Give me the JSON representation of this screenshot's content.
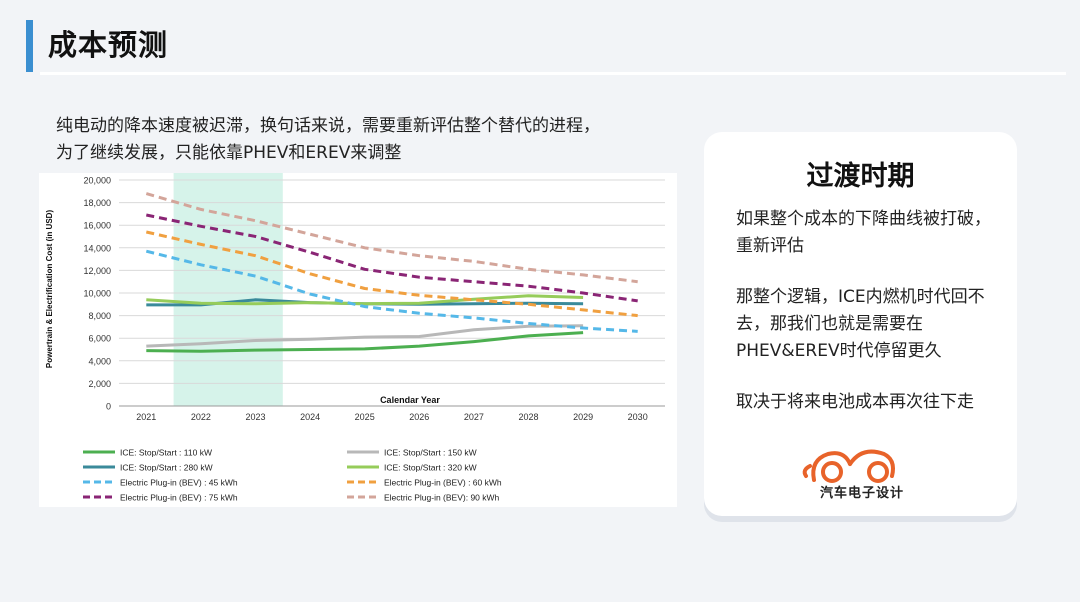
{
  "page": {
    "title": "成本预测",
    "intro": "纯电动的降本速度被迟滞，换句话来说，需要重新评估整个替代的进程，为了继续发展，只能依靠PHEV和EREV来调整"
  },
  "card": {
    "title": "过渡时期",
    "p1": "如果整个成本的下降曲线被打破，重新评估",
    "p2": "那整个逻辑，ICE内燃机时代回不去，那我们也就是需要在PHEV&EREV时代停留更久",
    "p3": "取决于将来电池成本再次往下走",
    "logo_text": "汽车电子设计",
    "logo_color": "#e8632a"
  },
  "chart_data": {
    "type": "line",
    "x": [
      2021,
      2022,
      2023,
      2024,
      2025,
      2026,
      2027,
      2028,
      2029,
      2030
    ],
    "xlabel": "Calendar Year",
    "ylabel": "Powertrain & Electrification Cost (in USD)",
    "ylim": [
      0,
      20000
    ],
    "yticks": [
      0,
      2000,
      4000,
      6000,
      8000,
      10000,
      12000,
      14000,
      16000,
      18000,
      20000
    ],
    "ytick_labels": [
      "0",
      "2,000",
      "4,000",
      "6,000",
      "8,000",
      "10,000",
      "12,000",
      "14,000",
      "16,000",
      "18,000",
      "20,000"
    ],
    "grid": true,
    "highlight_years": [
      2022,
      2023
    ],
    "highlight_color": "#d6f3ea",
    "legend_position": "bottom",
    "series": [
      {
        "name": "ICE: Stop/Start : 110 kW",
        "color": "#4caf50",
        "dash": false,
        "values": [
          4900,
          4850,
          4950,
          5000,
          5050,
          5300,
          5700,
          6200,
          6500,
          null
        ]
      },
      {
        "name": "ICE: Stop/Start : 150 kW",
        "color": "#b8b8b8",
        "dash": false,
        "values": [
          5300,
          5500,
          5800,
          5900,
          6100,
          6150,
          6750,
          7050,
          7100,
          null
        ]
      },
      {
        "name": "ICE: Stop/Start : 280 kW",
        "color": "#3a8a9a",
        "dash": false,
        "values": [
          8950,
          8950,
          9400,
          9150,
          9050,
          9000,
          9050,
          9100,
          9050,
          null
        ]
      },
      {
        "name": "ICE: Stop/Start : 320 kW",
        "color": "#96cc5a",
        "dash": false,
        "values": [
          9400,
          9100,
          9050,
          9150,
          9050,
          9100,
          9450,
          9750,
          9600,
          null
        ]
      },
      {
        "name": "Electric Plug-in (BEV) : 45 kWh",
        "color": "#55b8e8",
        "dash": true,
        "values": [
          13700,
          12500,
          11500,
          9900,
          8800,
          8200,
          7800,
          7300,
          6900,
          6600
        ]
      },
      {
        "name": "Electric Plug-in (BEV) : 60 kWh",
        "color": "#f0a040",
        "dash": true,
        "values": [
          15400,
          14300,
          13300,
          11700,
          10400,
          9800,
          9400,
          9000,
          8500,
          8000
        ]
      },
      {
        "name": "Electric Plug-in (BEV) : 75 kWh",
        "color": "#8a2575",
        "dash": true,
        "values": [
          16900,
          15900,
          15000,
          13600,
          12100,
          11400,
          11000,
          10600,
          10000,
          9300
        ]
      },
      {
        "name": "Electric Plug-in (BEV): 90 kWh",
        "color": "#d3a59a",
        "dash": true,
        "values": [
          18800,
          17400,
          16400,
          15200,
          14000,
          13300,
          12800,
          12100,
          11600,
          11000
        ]
      }
    ]
  }
}
